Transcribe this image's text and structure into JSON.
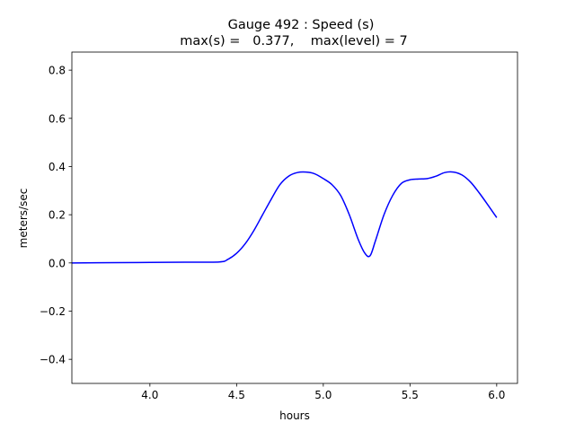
{
  "chart_data": {
    "type": "line",
    "title_line1": "Gauge 492 : Speed (s)",
    "title_line2": "max(s) =   0.377,    max(level) = 7",
    "xlabel": "hours",
    "ylabel": "meters/sec",
    "xlim": [
      3.55,
      6.12
    ],
    "ylim": [
      -0.5,
      0.875
    ],
    "xticks": [
      4.0,
      4.5,
      5.0,
      5.5,
      6.0
    ],
    "xtick_labels": [
      "4.0",
      "4.5",
      "5.0",
      "5.5",
      "6.0"
    ],
    "yticks": [
      -0.4,
      -0.2,
      0.0,
      0.2,
      0.4,
      0.6,
      0.8
    ],
    "ytick_labels": [
      "−0.4",
      "−0.2",
      "0.0",
      "0.2",
      "0.4",
      "0.6",
      "0.8"
    ],
    "grid": false,
    "series": [
      {
        "color": "#0000ff",
        "x": [
          3.55,
          3.8,
          4.0,
          4.2,
          4.4,
          4.45,
          4.5,
          4.55,
          4.6,
          4.65,
          4.7,
          4.75,
          4.8,
          4.85,
          4.9,
          4.95,
          5.0,
          5.05,
          5.1,
          5.15,
          5.2,
          5.24,
          5.27,
          5.3,
          5.35,
          5.4,
          5.45,
          5.5,
          5.55,
          5.6,
          5.65,
          5.7,
          5.75,
          5.8,
          5.85,
          5.9,
          5.95,
          6.0
        ],
        "y": [
          0.0,
          0.001,
          0.002,
          0.003,
          0.004,
          0.015,
          0.04,
          0.08,
          0.135,
          0.2,
          0.265,
          0.325,
          0.36,
          0.375,
          0.377,
          0.37,
          0.35,
          0.325,
          0.28,
          0.2,
          0.1,
          0.04,
          0.03,
          0.09,
          0.2,
          0.28,
          0.33,
          0.345,
          0.348,
          0.35,
          0.36,
          0.375,
          0.377,
          0.365,
          0.335,
          0.29,
          0.24,
          0.188
        ]
      }
    ]
  }
}
